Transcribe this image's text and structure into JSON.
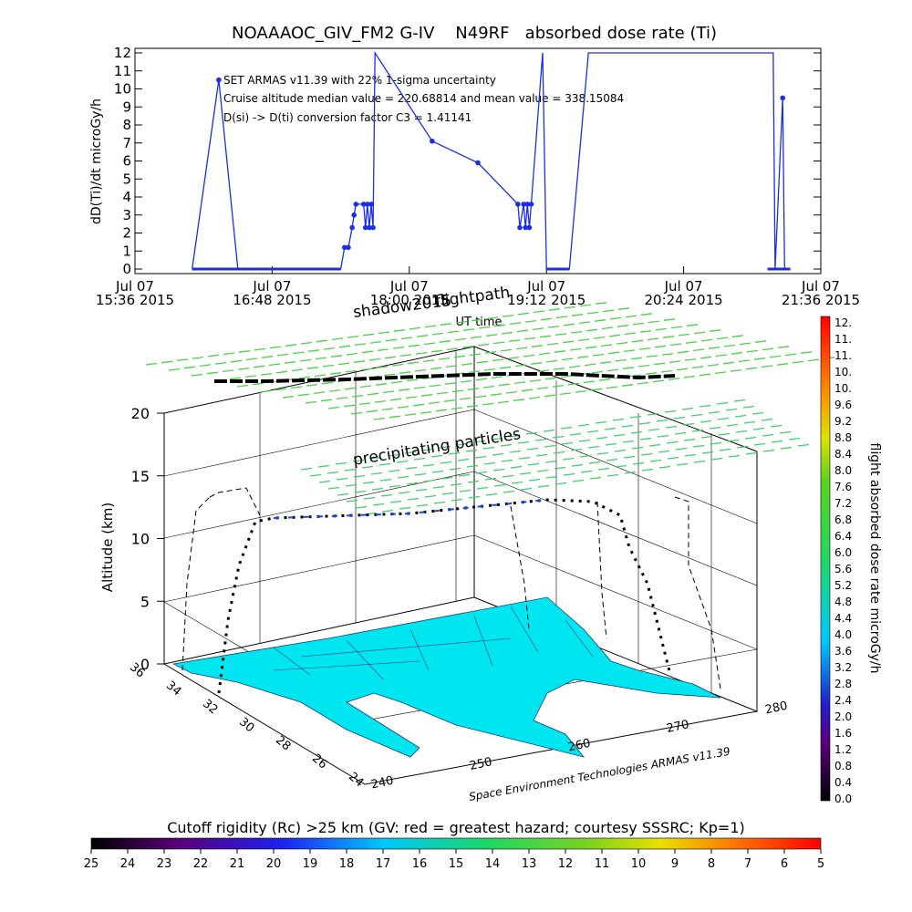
{
  "chart_data": [
    {
      "type": "line",
      "title": "NOAAAOC_GIV_FM2 G-IV    N49RF   absorbed dose rate (Ti)",
      "ylabel": "dD(Ti)/dt microGy/h",
      "xlabel": "UT time",
      "ylim": [
        0,
        12
      ],
      "y_ticks": [
        "0",
        "1",
        "2",
        "3",
        "4",
        "5",
        "6",
        "7",
        "8",
        "9",
        "10",
        "11",
        "12"
      ],
      "x_ticks": [
        {
          "line1": "Jul 07",
          "line2": "15:36 2015"
        },
        {
          "line1": "Jul 07",
          "line2": "16:48 2015"
        },
        {
          "line1": "Jul 07",
          "line2": "18:00 2015"
        },
        {
          "line1": "Jul 07",
          "line2": "19:12 2015"
        },
        {
          "line1": "Jul 07",
          "line2": "20:24 2015"
        },
        {
          "line1": "Jul 07",
          "line2": "21:36 2015"
        }
      ],
      "annotations": [
        "SET ARMAS v11.39 with 22% 1-sigma uncertainty",
        "Cruise altitude median value = 220.68814 and mean value = 338.15084",
        "D(si) -> D(ti) conversion factor C3 = 1.41141"
      ],
      "series_color": "#1a2ee8",
      "series": [
        {
          "values": [
            {
              "t": "16:06",
              "y": 0
            },
            {
              "t": "16:20",
              "y": 10.5
            },
            {
              "t": "16:30",
              "y": 0
            },
            {
              "t": "17:00",
              "y": 0
            },
            {
              "t": "17:24",
              "y": 0
            },
            {
              "t": "17:26",
              "y": 1.2
            },
            {
              "t": "17:28",
              "y": 1.2
            },
            {
              "t": "17:30",
              "y": 2.3
            },
            {
              "t": "17:31",
              "y": 3.0
            },
            {
              "t": "17:32",
              "y": 3.6
            },
            {
              "t": "17:36",
              "y": 3.6
            },
            {
              "t": "17:37",
              "y": 2.3
            },
            {
              "t": "17:38",
              "y": 3.6
            },
            {
              "t": "17:39",
              "y": 2.3
            },
            {
              "t": "17:40",
              "y": 3.6
            },
            {
              "t": "17:41",
              "y": 2.3
            },
            {
              "t": "17:42",
              "y": 12
            },
            {
              "t": "18:12",
              "y": 7.1
            },
            {
              "t": "18:36",
              "y": 5.9
            },
            {
              "t": "18:57",
              "y": 3.6
            },
            {
              "t": "18:58",
              "y": 2.3
            },
            {
              "t": "19:00",
              "y": 3.6
            },
            {
              "t": "19:01",
              "y": 2.3
            },
            {
              "t": "19:02",
              "y": 3.6
            },
            {
              "t": "19:03",
              "y": 2.3
            },
            {
              "t": "19:04",
              "y": 3.6
            },
            {
              "t": "19:10",
              "y": 12
            },
            {
              "t": "19:12",
              "y": 0
            },
            {
              "t": "19:18",
              "y": 0
            },
            {
              "t": "19:24",
              "y": 0
            },
            {
              "t": "19:34",
              "y": 12
            },
            {
              "t": "21:11",
              "y": 12
            },
            {
              "t": "21:12",
              "y": 0
            },
            {
              "t": "21:16",
              "y": 9.5
            },
            {
              "t": "21:17",
              "y": 0
            },
            {
              "t": "21:20",
              "y": 0
            }
          ]
        }
      ]
    },
    {
      "type": "scatter",
      "annotations_3d": [
        "shadow2015",
        "flightpath",
        "precipitating particles"
      ],
      "zlabel": "Altitude (km)",
      "z_ticks": [
        "0",
        "5",
        "10",
        "15",
        "20"
      ],
      "lat_ticks": [
        "36",
        "34",
        "32",
        "30",
        "28",
        "26",
        "24"
      ],
      "lon_ticks": [
        "240",
        "250",
        "260",
        "270",
        "280"
      ],
      "credit": "Space Environment Technologies ARMAS v11.39",
      "colorbar": {
        "label": "flight absorbed dose rate microGy/h",
        "ticks": [
          "0.0",
          "0.4",
          "0.8",
          "1.2",
          "1.6",
          "2.0",
          "2.4",
          "2.8",
          "3.2",
          "3.6",
          "4.0",
          "4.4",
          "4.8",
          "5.2",
          "5.6",
          "6.0",
          "6.4",
          "6.8",
          "7.2",
          "7.6",
          "8.0",
          "8.4",
          "8.8",
          "9.2",
          "9.6",
          "10.",
          "10.",
          "11.",
          "11.",
          "12."
        ]
      },
      "rigidity_bar": {
        "title": "Cutoff rigidity (Rc) >25 km (GV: red = greatest hazard; courtesy SSSRC; Kp=1)",
        "ticks": [
          "25",
          "24",
          "23",
          "22",
          "21",
          "20",
          "19",
          "18",
          "17",
          "16",
          "15",
          "14",
          "13",
          "12",
          "11",
          "10",
          "9",
          "8",
          "7",
          "6",
          "5"
        ]
      },
      "colors": {
        "map_fill": "#00e6f0",
        "shadow_track": "#000000",
        "grid_arrow": "#49d24a"
      }
    }
  ]
}
